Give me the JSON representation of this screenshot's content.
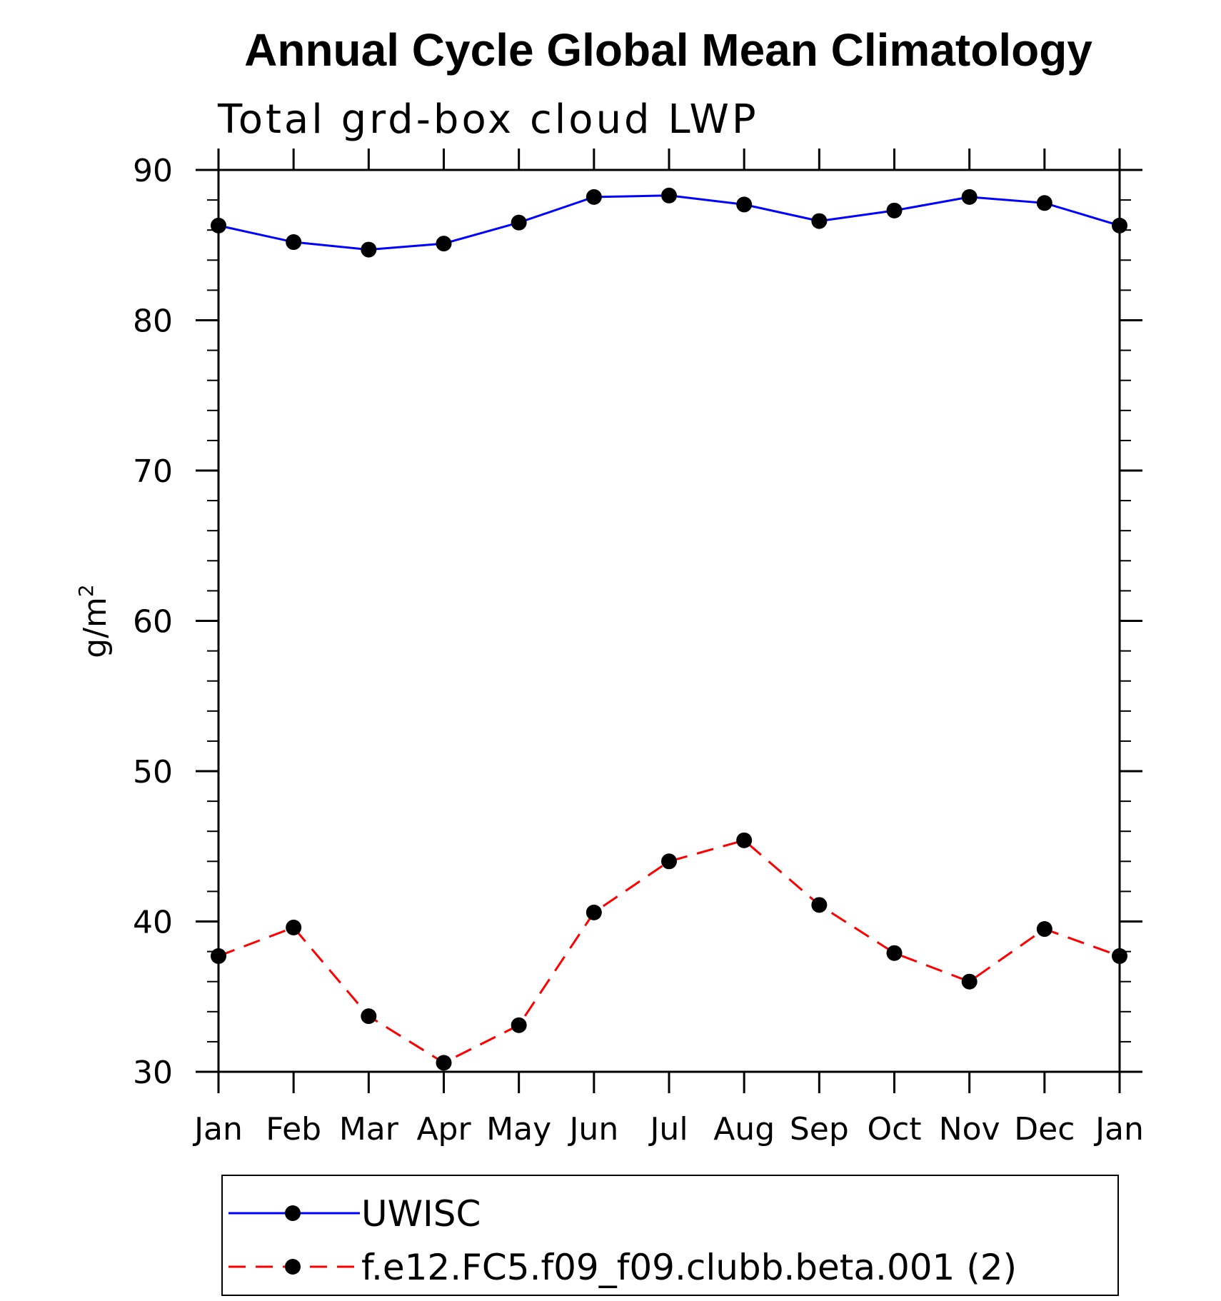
{
  "chart_data": {
    "type": "line",
    "title": "Annual Cycle Global Mean Climatology",
    "subtitle": "Total grd-box cloud LWP",
    "ylabel_base": "g/m",
    "ylabel_sup": "2",
    "categories": [
      "Jan",
      "Feb",
      "Mar",
      "Apr",
      "May",
      "Jun",
      "Jul",
      "Aug",
      "Sep",
      "Oct",
      "Nov",
      "Dec",
      "Jan"
    ],
    "ylim": [
      30,
      90
    ],
    "yticks": [
      "30",
      "40",
      "50",
      "60",
      "70",
      "80",
      "90"
    ],
    "y_minor_step": 2,
    "grid": false,
    "legend_position": "bottom",
    "series": [
      {
        "name": "UWISC",
        "color": "#0000ff",
        "dash": "solid",
        "marker": "filled-circle",
        "values": [
          86.3,
          85.2,
          84.7,
          85.1,
          86.5,
          88.2,
          88.3,
          87.7,
          86.6,
          87.3,
          88.2,
          87.8,
          86.3
        ]
      },
      {
        "name": "f.e12.FC5.f09_f09.clubb.beta.001 (2)",
        "color": "#ff0000",
        "dash": "dashed",
        "marker": "filled-circle",
        "values": [
          37.7,
          39.6,
          33.7,
          30.6,
          33.1,
          40.6,
          44.0,
          45.4,
          41.1,
          37.9,
          36.0,
          39.5,
          37.7
        ]
      }
    ]
  }
}
